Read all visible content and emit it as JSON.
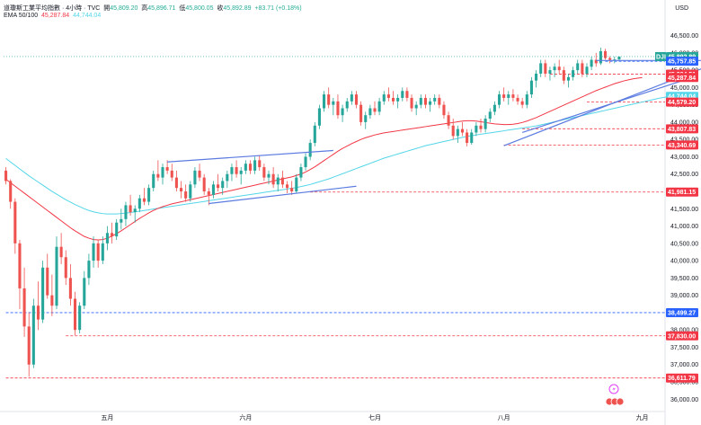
{
  "header": {
    "symbol_line": "道瓊斯工業平均指數 · 4小時 · TVC",
    "open_label": "開",
    "open": "45,809.20",
    "high_label": "高",
    "high": "45,896.71",
    "low_label": "低",
    "low": "45,800.05",
    "close_label": "收",
    "close": "45,892.89",
    "change": "+83.71 (+0.18%)",
    "ema_label": "EMA 50/100",
    "ema50": "45,287.84",
    "ema100": "44,744.04"
  },
  "currency": "USD",
  "colors": {
    "up": "#26a69a",
    "down": "#ef5350",
    "ema50": "#f23645",
    "ema100": "#53d6e8",
    "trend": "#5b7be0",
    "level": "#f23645",
    "level_blue": "#2962ff",
    "price_tag": "#26a69a",
    "blue_tag": "#2962ff"
  },
  "chart_data": {
    "type": "candlestick",
    "ylim": [
      35800,
      46800
    ],
    "y_ticks": [
      "46,500.00",
      "46,000.00",
      "45,500.00",
      "45,000.00",
      "44,500.00",
      "44,000.00",
      "43,500.00",
      "43,000.00",
      "42,500.00",
      "42,000.00",
      "41,500.00",
      "41,000.00",
      "40,500.00",
      "40,000.00",
      "39,500.00",
      "39,000.00",
      "38,500.00",
      "38,000.00",
      "37,500.00",
      "37,000.00",
      "36,500.00",
      "36,000.00"
    ],
    "y_tick_values": [
      46500,
      46000,
      45500,
      45000,
      44500,
      44000,
      43500,
      43000,
      42500,
      42000,
      41500,
      41000,
      40500,
      40000,
      39500,
      39000,
      38500,
      38000,
      37500,
      37000,
      36500,
      36000
    ],
    "months": [
      {
        "label": "五月",
        "index": 22
      },
      {
        "label": "六月",
        "index": 52
      },
      {
        "label": "七月",
        "index": 80
      },
      {
        "label": "八月",
        "index": 108
      },
      {
        "label": "九月",
        "index": 138
      }
    ],
    "last_price": {
      "label": "DJI",
      "value": 45892.89,
      "text": "45,892.89"
    },
    "levels": [
      {
        "value": 45757.85,
        "text": "45,757.85",
        "color": "blue",
        "start": 130
      },
      {
        "value": 45384.51,
        "text": "45,384.51",
        "color": "red",
        "start": 118
      },
      {
        "value": 45287.84,
        "text": "45,287.84",
        "color": "ema50",
        "start": null
      },
      {
        "value": 44744.04,
        "text": "44,744.04",
        "color": "ema100",
        "start": null
      },
      {
        "value": 44579.2,
        "text": "44,579.20",
        "color": "red",
        "start": 126
      },
      {
        "value": 43807.83,
        "text": "43,807.83",
        "color": "red",
        "start": 112
      },
      {
        "value": 43340.69,
        "text": "43,340.69",
        "color": "red",
        "start": 108
      },
      {
        "value": 41981.15,
        "text": "41,981.15",
        "color": "red",
        "start": 66
      },
      {
        "value": 38499.27,
        "text": "38,499.27",
        "color": "blue",
        "start": 0
      },
      {
        "value": 37830.0,
        "text": "37,830.00",
        "color": "red",
        "start": 13
      },
      {
        "value": 36611.79,
        "text": "36,611.79",
        "color": "red",
        "start": 0
      }
    ],
    "trendlines": [
      {
        "from": [
          35,
          42850
        ],
        "to": [
          71,
          43180
        ]
      },
      {
        "from": [
          44,
          41650
        ],
        "to": [
          76,
          42150
        ]
      },
      {
        "from": [
          108,
          43320
        ],
        "to": [
          152,
          45600
        ]
      },
      {
        "from": [
          112,
          43700
        ],
        "to": [
          148,
          45250
        ]
      },
      {
        "from": [
          128,
          45780
        ],
        "to": [
          152,
          45780
        ]
      }
    ],
    "ema50": [
      42350,
      42250,
      42150,
      42050,
      41950,
      41850,
      41750,
      41650,
      41550,
      41450,
      41350,
      41250,
      41150,
      41050,
      40950,
      40860,
      40780,
      40700,
      40650,
      40610,
      40600,
      40610,
      40650,
      40710,
      40780,
      40860,
      40950,
      41040,
      41130,
      41220,
      41300,
      41380,
      41450,
      41510,
      41560,
      41600,
      41640,
      41670,
      41700,
      41730,
      41760,
      41790,
      41820,
      41850,
      41880,
      41910,
      41940,
      41970,
      42000,
      42030,
      42060,
      42090,
      42120,
      42150,
      42180,
      42210,
      42240,
      42270,
      42300,
      42330,
      42360,
      42390,
      42420,
      42460,
      42500,
      42560,
      42630,
      42710,
      42800,
      42890,
      42980,
      43070,
      43160,
      43240,
      43310,
      43380,
      43440,
      43500,
      43550,
      43590,
      43630,
      43660,
      43690,
      43710,
      43730,
      43750,
      43770,
      43790,
      43810,
      43830,
      43850,
      43870,
      43890,
      43910,
      43930,
      43950,
      43970,
      43990,
      44010,
      44030,
      44040,
      44040,
      44030,
      44010,
      43990,
      43970,
      43950,
      43940,
      43930,
      43930,
      43940,
      43960,
      43990,
      44030,
      44080,
      44130,
      44190,
      44250,
      44310,
      44370,
      44430,
      44490,
      44550,
      44610,
      44670,
      44730,
      44790,
      44850,
      44910,
      44960,
      45010,
      45060,
      45110,
      45150,
      45190,
      45220,
      45250,
      45270,
      45287
    ],
    "ema100": [
      42950,
      42850,
      42750,
      42650,
      42550,
      42450,
      42360,
      42270,
      42180,
      42090,
      42000,
      41920,
      41840,
      41760,
      41690,
      41620,
      41560,
      41500,
      41450,
      41410,
      41380,
      41360,
      41350,
      41350,
      41350,
      41360,
      41370,
      41390,
      41410,
      41430,
      41450,
      41470,
      41490,
      41510,
      41530,
      41550,
      41570,
      41590,
      41610,
      41630,
      41650,
      41670,
      41690,
      41710,
      41730,
      41750,
      41770,
      41790,
      41810,
      41830,
      41850,
      41870,
      41890,
      41910,
      41930,
      41950,
      41970,
      41990,
      42010,
      42030,
      42050,
      42070,
      42090,
      42110,
      42140,
      42170,
      42200,
      42240,
      42280,
      42320,
      42360,
      42410,
      42460,
      42510,
      42560,
      42610,
      42660,
      42710,
      42760,
      42810,
      42860,
      42910,
      42960,
      43000,
      43040,
      43080,
      43120,
      43160,
      43200,
      43240,
      43280,
      43320,
      43350,
      43380,
      43410,
      43440,
      43470,
      43500,
      43530,
      43560,
      43590,
      43610,
      43630,
      43650,
      43670,
      43690,
      43710,
      43730,
      43750,
      43770,
      43790,
      43810,
      43830,
      43850,
      43870,
      43890,
      43920,
      43950,
      43980,
      44010,
      44040,
      44070,
      44100,
      44130,
      44160,
      44190,
      44220,
      44250,
      44280,
      44310,
      44340,
      44370,
      44400,
      44430,
      44460,
      44490,
      44520,
      44550,
      44580,
      44610,
      44640,
      44670,
      44700,
      44720,
      44744
    ],
    "ema_start_index": 0,
    "candles": [
      [
        42600,
        42700,
        42200,
        42300
      ],
      [
        42300,
        42350,
        41500,
        41700
      ],
      [
        41700,
        41800,
        40200,
        40500
      ],
      [
        40500,
        40600,
        38600,
        39200
      ],
      [
        39200,
        39800,
        37800,
        38100
      ],
      [
        38100,
        38500,
        36650,
        37000
      ],
      [
        37000,
        38900,
        36900,
        38700
      ],
      [
        38700,
        39400,
        38000,
        38300
      ],
      [
        38300,
        40000,
        38200,
        39800
      ],
      [
        39800,
        40200,
        38900,
        39000
      ],
      [
        39000,
        39600,
        38400,
        38700
      ],
      [
        38700,
        40700,
        38600,
        40400
      ],
      [
        40400,
        40800,
        39900,
        40100
      ],
      [
        40100,
        40300,
        39300,
        39500
      ],
      [
        39500,
        39900,
        38700,
        38900
      ],
      [
        38900,
        39100,
        37850,
        38000
      ],
      [
        38000,
        38800,
        37900,
        38700
      ],
      [
        38700,
        39700,
        38600,
        39500
      ],
      [
        39500,
        40200,
        39300,
        40000
      ],
      [
        40000,
        40700,
        39800,
        40500
      ],
      [
        40500,
        40600,
        39800,
        40000
      ],
      [
        40000,
        40700,
        39900,
        40500
      ],
      [
        40500,
        41000,
        40300,
        40800
      ],
      [
        40800,
        41100,
        40500,
        40700
      ],
      [
        40700,
        41200,
        40600,
        41100
      ],
      [
        41100,
        41500,
        40900,
        41200
      ],
      [
        41200,
        41700,
        41000,
        41600
      ],
      [
        41600,
        41900,
        41300,
        41400
      ],
      [
        41400,
        41600,
        41100,
        41500
      ],
      [
        41500,
        41900,
        41400,
        41800
      ],
      [
        41800,
        42100,
        41600,
        41700
      ],
      [
        41700,
        42200,
        41600,
        42100
      ],
      [
        42100,
        42600,
        42000,
        42500
      ],
      [
        42500,
        42900,
        42300,
        42400
      ],
      [
        42400,
        42800,
        42200,
        42700
      ],
      [
        42700,
        42900,
        42500,
        42600
      ],
      [
        42600,
        42800,
        42300,
        42400
      ],
      [
        42400,
        42600,
        42000,
        42100
      ],
      [
        42100,
        42300,
        41800,
        42000
      ],
      [
        42000,
        42200,
        41700,
        41800
      ],
      [
        41800,
        42300,
        41700,
        42200
      ],
      [
        42200,
        42700,
        42100,
        42600
      ],
      [
        42600,
        42800,
        42300,
        42400
      ],
      [
        42400,
        42500,
        41900,
        42000
      ],
      [
        42000,
        42100,
        41600,
        41900
      ],
      [
        41900,
        42300,
        41800,
        42200
      ],
      [
        42200,
        42500,
        42000,
        42100
      ],
      [
        42100,
        42400,
        41900,
        42300
      ],
      [
        42300,
        42600,
        42100,
        42500
      ],
      [
        42500,
        42800,
        42300,
        42700
      ],
      [
        42700,
        42900,
        42400,
        42500
      ],
      [
        42500,
        42700,
        42200,
        42600
      ],
      [
        42600,
        42900,
        42500,
        42800
      ],
      [
        42800,
        42900,
        42500,
        42600
      ],
      [
        42600,
        43000,
        42500,
        42900
      ],
      [
        42900,
        43050,
        42600,
        42700
      ],
      [
        42700,
        42800,
        42300,
        42400
      ],
      [
        42400,
        42600,
        42200,
        42500
      ],
      [
        42500,
        42700,
        42100,
        42200
      ],
      [
        42200,
        42500,
        42000,
        42400
      ],
      [
        42400,
        42600,
        42100,
        42200
      ],
      [
        42200,
        42300,
        41950,
        42100
      ],
      [
        42100,
        42300,
        41900,
        42000
      ],
      [
        42000,
        42500,
        41950,
        42400
      ],
      [
        42400,
        42800,
        42300,
        42700
      ],
      [
        42700,
        43100,
        42600,
        43000
      ],
      [
        43000,
        43500,
        42900,
        43400
      ],
      [
        43400,
        44000,
        43300,
        43900
      ],
      [
        43900,
        44500,
        43800,
        44400
      ],
      [
        44400,
        44900,
        44300,
        44800
      ],
      [
        44800,
        45000,
        44400,
        44500
      ],
      [
        44500,
        44700,
        44200,
        44600
      ],
      [
        44600,
        44800,
        44100,
        44200
      ],
      [
        44200,
        44500,
        44000,
        44400
      ],
      [
        44400,
        44700,
        44300,
        44600
      ],
      [
        44600,
        44900,
        44500,
        44800
      ],
      [
        44800,
        44900,
        44400,
        44500
      ],
      [
        44500,
        44600,
        43900,
        44000
      ],
      [
        44000,
        44300,
        43800,
        44200
      ],
      [
        44200,
        44500,
        44100,
        44400
      ],
      [
        44400,
        44600,
        44200,
        44300
      ],
      [
        44300,
        44700,
        44200,
        44600
      ],
      [
        44600,
        44900,
        44500,
        44800
      ],
      [
        44800,
        45000,
        44600,
        44700
      ],
      [
        44700,
        44900,
        44500,
        44600
      ],
      [
        44600,
        44800,
        44400,
        44700
      ],
      [
        44700,
        45000,
        44600,
        44900
      ],
      [
        44900,
        45000,
        44600,
        44700
      ],
      [
        44700,
        44800,
        44300,
        44400
      ],
      [
        44400,
        44600,
        44200,
        44500
      ],
      [
        44500,
        44800,
        44400,
        44700
      ],
      [
        44700,
        44800,
        44400,
        44500
      ],
      [
        44500,
        44700,
        44300,
        44600
      ],
      [
        44600,
        44800,
        44500,
        44700
      ],
      [
        44700,
        44800,
        44400,
        44500
      ],
      [
        44500,
        44600,
        44100,
        44200
      ],
      [
        44200,
        44300,
        43800,
        43900
      ],
      [
        43900,
        44100,
        43500,
        43600
      ],
      [
        43600,
        43900,
        43400,
        43800
      ],
      [
        43800,
        44000,
        43600,
        43700
      ],
      [
        43700,
        43800,
        43300,
        43400
      ],
      [
        43400,
        43800,
        43350,
        43700
      ],
      [
        43700,
        44000,
        43600,
        43900
      ],
      [
        43900,
        44100,
        43700,
        43800
      ],
      [
        43800,
        44200,
        43700,
        44100
      ],
      [
        44100,
        44400,
        44000,
        44300
      ],
      [
        44300,
        44600,
        44200,
        44500
      ],
      [
        44500,
        44900,
        44400,
        44800
      ],
      [
        44800,
        45000,
        44600,
        44700
      ],
      [
        44700,
        44900,
        44500,
        44800
      ],
      [
        44800,
        44950,
        44600,
        44700
      ],
      [
        44700,
        44800,
        44500,
        44600
      ],
      [
        44600,
        44700,
        44400,
        44500
      ],
      [
        44500,
        44900,
        44400,
        44800
      ],
      [
        44800,
        45300,
        44700,
        45200
      ],
      [
        45200,
        45500,
        45000,
        45400
      ],
      [
        45400,
        45800,
        45300,
        45700
      ],
      [
        45700,
        45800,
        45300,
        45400
      ],
      [
        45400,
        45600,
        45200,
        45500
      ],
      [
        45500,
        45700,
        45300,
        45600
      ],
      [
        45600,
        45800,
        45400,
        45500
      ],
      [
        45500,
        45600,
        45100,
        45200
      ],
      [
        45200,
        45400,
        45000,
        45300
      ],
      [
        45300,
        45600,
        45200,
        45500
      ],
      [
        45500,
        45800,
        45400,
        45700
      ],
      [
        45700,
        45800,
        45300,
        45400
      ],
      [
        45400,
        45700,
        45300,
        45600
      ],
      [
        45600,
        45900,
        45500,
        45800
      ],
      [
        45800,
        46000,
        45600,
        45700
      ],
      [
        45700,
        46150,
        45650,
        46050
      ],
      [
        46050,
        46120,
        45800,
        45850
      ],
      [
        45850,
        45900,
        45700,
        45800
      ],
      [
        45800,
        45896,
        45700,
        45809
      ],
      [
        45809,
        45896,
        45800,
        45893
      ]
    ]
  }
}
